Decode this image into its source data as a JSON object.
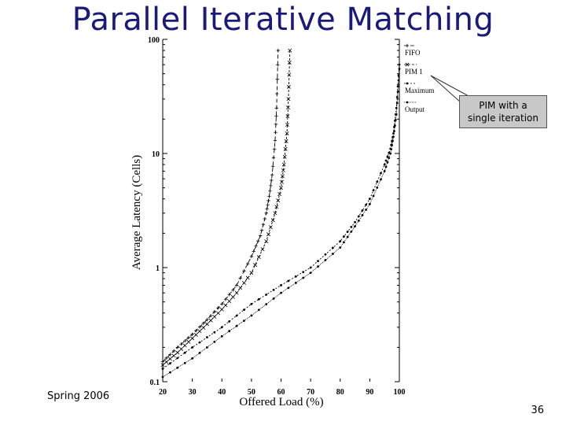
{
  "slide": {
    "title": "Parallel Iterative Matching",
    "footer_left": "Spring 2006",
    "page_number": "36"
  },
  "callout": {
    "line1": "PIM with a",
    "line2": "single iteration"
  },
  "chart_data": {
    "type": "line",
    "xlabel": "Offered Load (%)",
    "ylabel": "Average Latency (Cells)",
    "xlim": [
      20,
      100
    ],
    "ylim": [
      0.1,
      100
    ],
    "y_scale": "log",
    "x_ticks": [
      20,
      30,
      40,
      50,
      60,
      70,
      80,
      90,
      100
    ],
    "y_ticks": [
      0.1,
      1,
      10,
      100
    ],
    "x_tick_labels": [
      "20",
      "30",
      "40",
      "50",
      "60",
      "70",
      "80",
      "90",
      "100"
    ],
    "y_tick_labels": [
      "0.1",
      "1",
      "10",
      "100"
    ],
    "legend_position": "top-right",
    "series": [
      {
        "name": "FIFO",
        "color": "#000000",
        "marker": "plus",
        "x": [
          20,
          25,
          30,
          35,
          40,
          45,
          50,
          53,
          55,
          56,
          57,
          58,
          58.5,
          59
        ],
        "y": [
          0.15,
          0.2,
          0.26,
          0.35,
          0.48,
          0.7,
          1.25,
          1.9,
          3.0,
          4.2,
          6.5,
          13,
          25,
          80
        ]
      },
      {
        "name": "PIM 1",
        "color": "#000000",
        "marker": "x",
        "x": [
          20,
          25,
          30,
          35,
          40,
          45,
          50,
          55,
          58,
          60,
          61,
          62,
          62.5,
          63
        ],
        "y": [
          0.14,
          0.18,
          0.24,
          0.32,
          0.43,
          0.6,
          0.9,
          1.7,
          3.0,
          5.0,
          8.0,
          15,
          30,
          80
        ]
      },
      {
        "name": "Maximum",
        "color": "#000000",
        "marker": "dot",
        "x": [
          20,
          30,
          40,
          50,
          60,
          70,
          80,
          85,
          90,
          95,
          97,
          98,
          99,
          100
        ],
        "y": [
          0.13,
          0.2,
          0.3,
          0.48,
          0.7,
          1.0,
          1.7,
          2.5,
          4.0,
          8.0,
          11,
          15,
          25,
          60
        ]
      },
      {
        "name": "Output",
        "color": "#000000",
        "marker": "dot",
        "x": [
          20,
          30,
          40,
          50,
          60,
          70,
          80,
          85,
          90,
          95,
          97,
          98,
          99,
          100
        ],
        "y": [
          0.11,
          0.16,
          0.25,
          0.38,
          0.6,
          0.9,
          1.5,
          2.3,
          3.6,
          7.0,
          10,
          14,
          22,
          55
        ]
      }
    ]
  }
}
